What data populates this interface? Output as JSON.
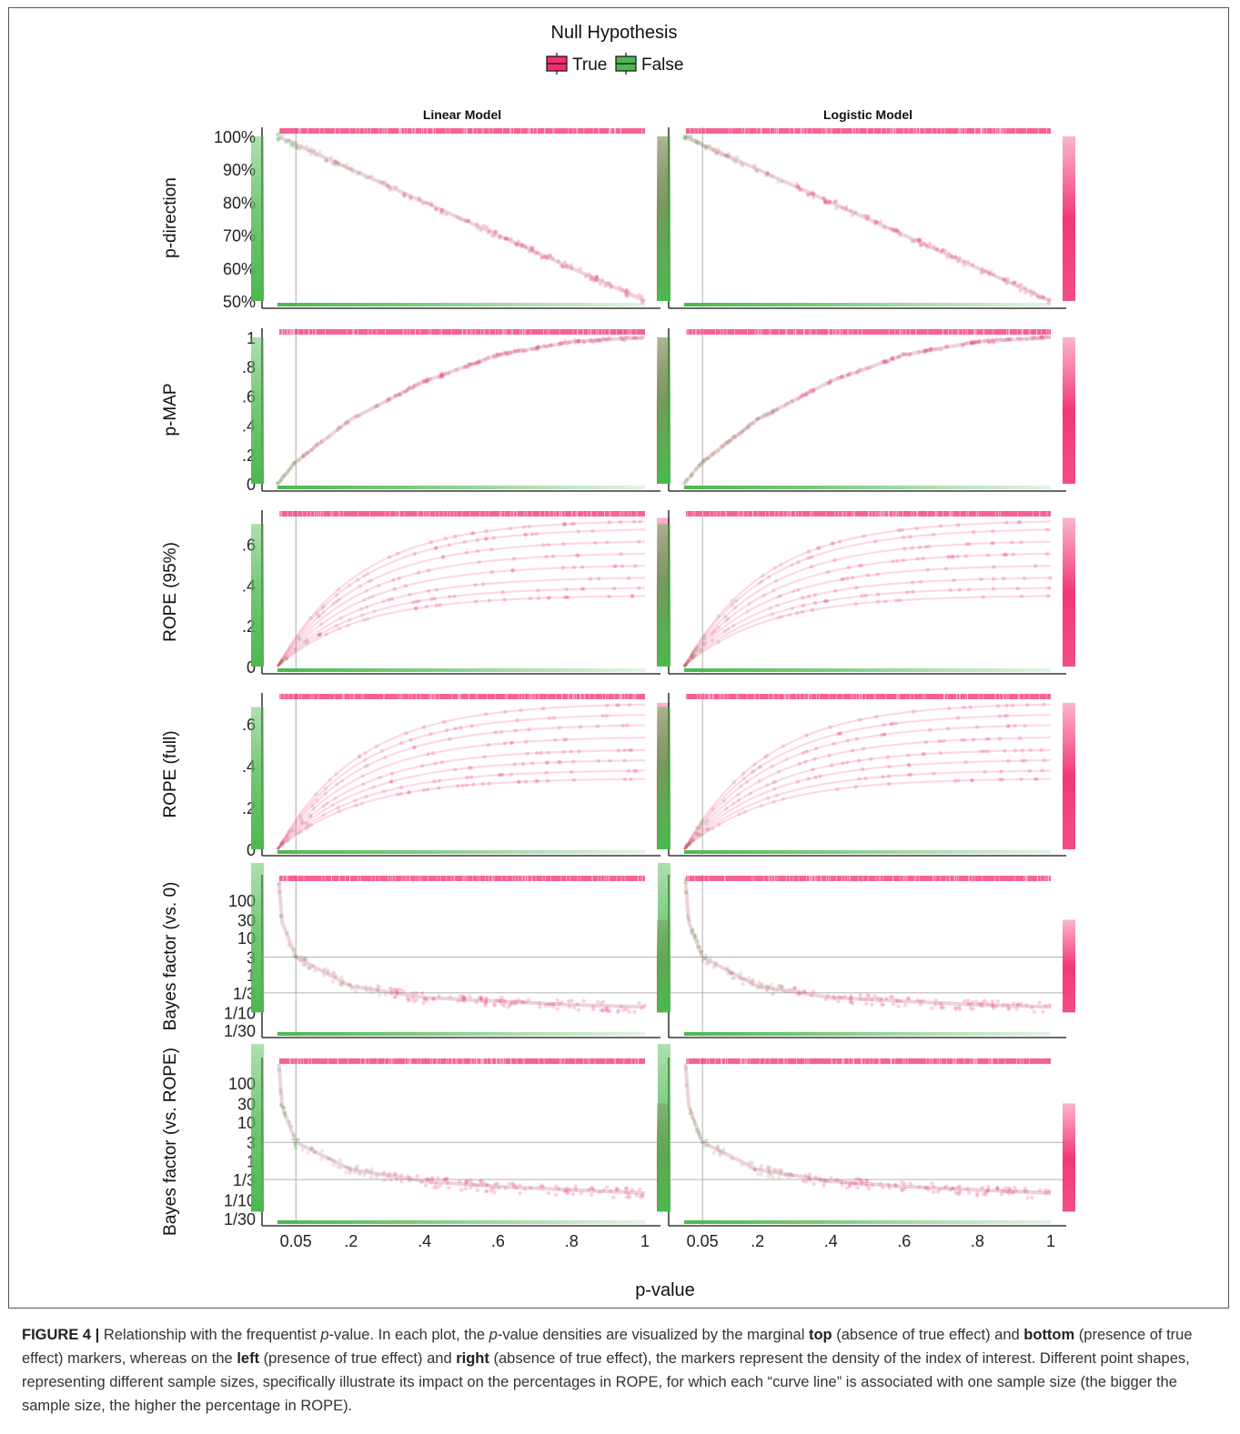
{
  "legend": {
    "title": "Null Hypothesis",
    "entries": [
      {
        "label": "True",
        "color": "#f22e6f"
      },
      {
        "label": "False",
        "color": "#4cb84e"
      }
    ]
  },
  "colors": {
    "true_effect_absent": "#f22e6f",
    "true_effect_present": "#4cb84e"
  },
  "chart_data": {
    "type": "scatter",
    "facet_columns": [
      "Linear Model",
      "Logistic Model"
    ],
    "xlabel": "p-value",
    "x_ticks": [
      0.05,
      0.2,
      0.4,
      0.6,
      0.8,
      1
    ],
    "x_tick_labels": [
      "0.05",
      ".2",
      ".4",
      ".6",
      ".8",
      "1"
    ],
    "xlim": [
      0,
      1
    ],
    "reference_lines": {
      "x": 0.05
    },
    "rows": [
      {
        "ylabel": "p-direction",
        "ylim": [
          0.5,
          1.0
        ],
        "y_ticks": [
          1.0,
          0.9,
          0.8,
          0.7,
          0.6,
          0.5
        ],
        "y_tick_labels": [
          "100%",
          "90%",
          "80%",
          "70%",
          "60%",
          "50%"
        ],
        "relation": "p_direction = 1 - p/2",
        "curve_points": [
          [
            0.0,
            1.0
          ],
          [
            0.2,
            0.9
          ],
          [
            0.4,
            0.8
          ],
          [
            0.6,
            0.7
          ],
          [
            0.8,
            0.6
          ],
          [
            1.0,
            0.5
          ]
        ],
        "left_marker_range": [
          0.5,
          1.0
        ],
        "right_marker_range": [
          0.5,
          1.0
        ]
      },
      {
        "ylabel": "p-MAP",
        "ylim": [
          0,
          1
        ],
        "y_ticks": [
          1,
          0.8,
          0.6,
          0.4,
          0.2,
          0
        ],
        "y_tick_labels": [
          "1",
          ".8",
          ".6",
          ".4",
          ".2",
          "0"
        ],
        "relation": "p_MAP = exp(-z^2/2)",
        "curve_points": [
          [
            0.0,
            0.0
          ],
          [
            0.05,
            0.15
          ],
          [
            0.2,
            0.44
          ],
          [
            0.4,
            0.7
          ],
          [
            0.6,
            0.88
          ],
          [
            0.8,
            0.97
          ],
          [
            1.0,
            1.0
          ]
        ],
        "left_marker_range": [
          0.0,
          1.0
        ],
        "right_marker_range": [
          0.0,
          1.0
        ]
      },
      {
        "ylabel": "ROPE (95%)",
        "ylim": [
          0,
          0.75
        ],
        "y_ticks": [
          0.6,
          0.4,
          0.2,
          0
        ],
        "y_tick_labels": [
          ".6",
          ".4",
          ".2",
          "0"
        ],
        "relation": "one curve per sample size",
        "curve_asymptotes": [
          0.35,
          0.39,
          0.44,
          0.5,
          0.56,
          0.62,
          0.68,
          0.72
        ],
        "left_marker_range": [
          0.0,
          0.7
        ],
        "right_marker_range": [
          0.0,
          0.73
        ]
      },
      {
        "ylabel": "ROPE (full)",
        "ylim": [
          0,
          0.73
        ],
        "y_ticks": [
          0.6,
          0.4,
          0.2,
          0
        ],
        "y_tick_labels": [
          ".6",
          ".4",
          ".2",
          "0"
        ],
        "relation": "one curve per sample size",
        "curve_asymptotes": [
          0.34,
          0.38,
          0.43,
          0.48,
          0.54,
          0.6,
          0.65,
          0.7
        ],
        "left_marker_range": [
          0.0,
          0.68
        ],
        "right_marker_range": [
          0.0,
          0.7
        ]
      },
      {
        "ylabel": "Bayes factor (vs. 0)",
        "scale": "log",
        "ylim": [
          0.0333,
          1000
        ],
        "y_ticks": [
          100,
          30,
          10,
          3,
          1,
          0.3333,
          0.1,
          0.0333
        ],
        "y_tick_labels": [
          "100",
          "30",
          "10",
          "3",
          "1",
          "1/3",
          "1/10",
          "1/30"
        ],
        "reference_lines": {
          "y": [
            3,
            0.3333
          ]
        },
        "curve_points": [
          [
            0.001,
            1000
          ],
          [
            0.01,
            30
          ],
          [
            0.05,
            3
          ],
          [
            0.2,
            0.5
          ],
          [
            0.4,
            0.25
          ],
          [
            0.6,
            0.2
          ],
          [
            0.8,
            0.16
          ],
          [
            1.0,
            0.14
          ]
        ],
        "left_marker_range": [
          0.1,
          1000
        ],
        "right_marker_range": [
          0.1,
          30
        ]
      },
      {
        "ylabel": "Bayes factor (vs. ROPE)",
        "scale": "log",
        "ylim": [
          0.0333,
          1000
        ],
        "y_ticks": [
          100,
          30,
          10,
          3,
          1,
          0.3333,
          0.1,
          0.0333
        ],
        "y_tick_labels": [
          "100",
          "30",
          "10",
          "3",
          "1",
          "1/3",
          "1/10",
          "1/30"
        ],
        "reference_lines": {
          "y": [
            3,
            0.3333
          ]
        },
        "curve_points": [
          [
            0.001,
            1000
          ],
          [
            0.01,
            30
          ],
          [
            0.05,
            3
          ],
          [
            0.2,
            0.6
          ],
          [
            0.4,
            0.3
          ],
          [
            0.6,
            0.22
          ],
          [
            0.8,
            0.18
          ],
          [
            1.0,
            0.15
          ]
        ],
        "left_marker_range": [
          0.05,
          1000
        ],
        "right_marker_range": [
          0.05,
          30
        ]
      }
    ]
  },
  "caption": {
    "label": "FIGURE 4 |",
    "s1": " Relationship with the frequentist ",
    "p1": "p",
    "s2": "-value. In each plot, the ",
    "p2": "p",
    "s3": "-value densities are visualized by the marginal ",
    "top": "top",
    "s4": " (absence of true effect) and ",
    "bottom": "bottom",
    "s5": " (presence of true effect) markers, whereas on the ",
    "left": "left",
    "s6": " (presence of true effect) and ",
    "right": "right",
    "s7": " (absence of true effect), the markers represent the density of the index of interest. Different point shapes, representing different sample sizes, specifically illustrate its impact on the percentages in ROPE, for which each “curve line” is associated with one sample size (the bigger the sample size, the higher the percentage in ROPE)."
  }
}
